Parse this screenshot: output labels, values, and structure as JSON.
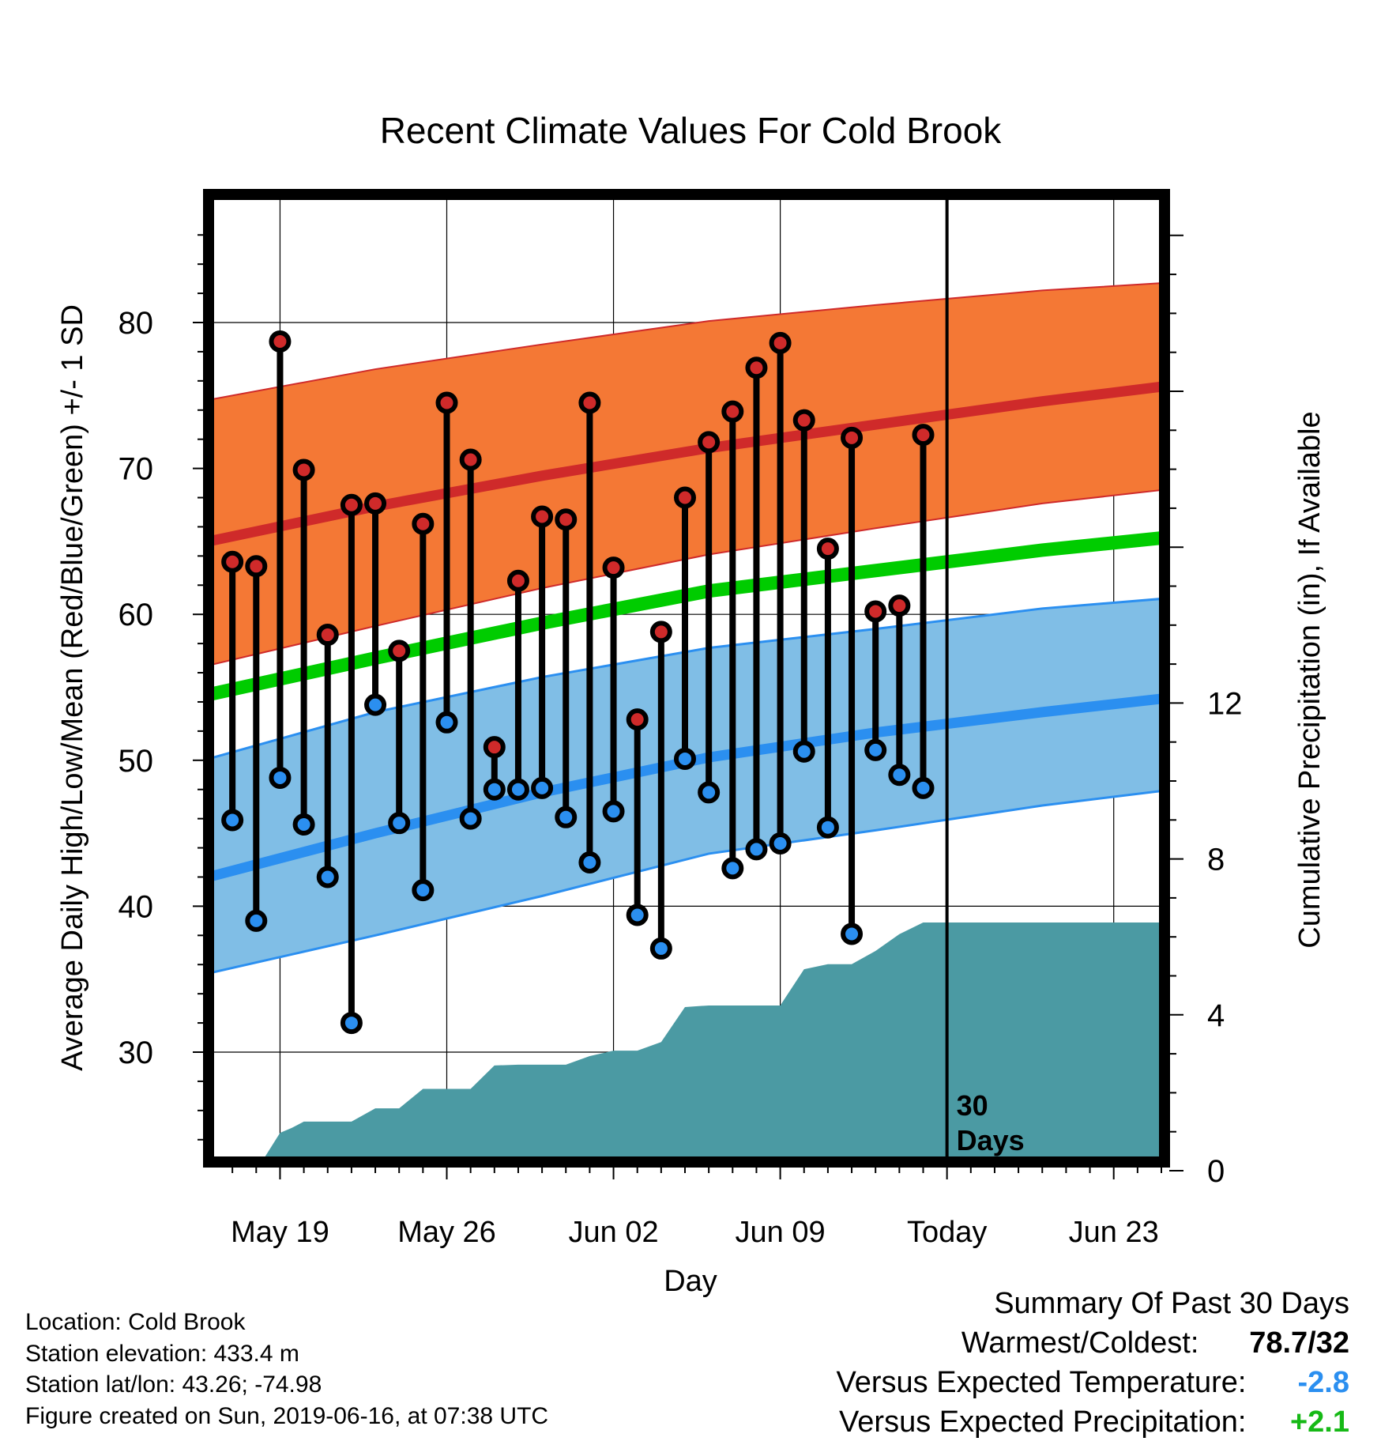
{
  "title": "Recent Climate Values For Cold Brook",
  "chart_data": {
    "type": "line",
    "title": "Recent Climate Values For Cold Brook",
    "xlabel": "Day",
    "ylabel": "Average Daily High/Low/Mean (Red/Blue/Green) +/- 1 SD",
    "y2label": "Cumulative Precipitation (in), If Available",
    "y_ticks": [
      "30",
      "40",
      "50",
      "60",
      "70",
      "80"
    ],
    "y2_ticks": [
      "0",
      "4",
      "8",
      "12"
    ],
    "x_ticks": [
      {
        "day": 3,
        "label": "May 19"
      },
      {
        "day": 10,
        "label": "May 26"
      },
      {
        "day": 17,
        "label": "Jun 02"
      },
      {
        "day": 24,
        "label": "Jun 09"
      },
      {
        "day": 31,
        "label": "Today"
      },
      {
        "day": 38,
        "label": "Jun 23"
      }
    ],
    "x_range_day": [
      0,
      41
    ],
    "ylim": [
      22,
      88
    ],
    "y2lim": [
      0,
      25
    ],
    "today_day": 31,
    "today_label": "30\nDays",
    "normals": {
      "day": [
        0,
        7,
        14,
        21,
        28,
        35,
        41
      ],
      "high_mean": [
        65.0,
        67.4,
        69.5,
        71.4,
        73.0,
        74.6,
        75.8
      ],
      "high_upper": [
        74.7,
        76.8,
        78.5,
        80.1,
        81.2,
        82.2,
        82.8
      ],
      "high_lower": [
        56.5,
        59.2,
        61.8,
        64.1,
        65.9,
        67.6,
        68.7
      ],
      "mean": [
        54.5,
        57.0,
        59.4,
        61.6,
        63.0,
        64.4,
        65.4
      ],
      "low_mean": [
        42.0,
        45.0,
        47.8,
        50.2,
        51.9,
        53.3,
        54.4
      ],
      "low_upper": [
        50.1,
        53.3,
        55.7,
        57.7,
        59.0,
        60.4,
        61.2
      ],
      "low_lower": [
        35.4,
        38.0,
        40.7,
        43.6,
        45.2,
        46.9,
        48.1
      ]
    },
    "daily": {
      "day": [
        1,
        2,
        3,
        4,
        5,
        6,
        7,
        8,
        9,
        10,
        11,
        12,
        13,
        14,
        15,
        16,
        17,
        18,
        19,
        20,
        21,
        22,
        23,
        24,
        25,
        26,
        27,
        28,
        29,
        30
      ],
      "high": [
        63.6,
        63.3,
        78.7,
        69.9,
        58.6,
        67.5,
        67.6,
        57.5,
        66.2,
        74.5,
        70.6,
        50.9,
        62.3,
        66.7,
        66.5,
        74.5,
        63.2,
        52.8,
        58.8,
        68.0,
        71.8,
        73.9,
        76.9,
        78.6,
        73.3,
        64.5,
        72.1,
        60.2,
        60.6,
        72.3
      ],
      "low": [
        45.9,
        39.0,
        48.8,
        45.6,
        42.0,
        32.0,
        53.8,
        45.7,
        41.1,
        52.6,
        46.0,
        48.0,
        48.0,
        48.1,
        46.1,
        43.0,
        46.5,
        39.4,
        37.1,
        50.1,
        47.8,
        42.6,
        43.9,
        44.3,
        50.6,
        45.4,
        38.1,
        50.7,
        49.0,
        48.1
      ]
    },
    "precip": {
      "day": [
        2,
        3,
        3.5,
        4,
        5,
        6,
        7,
        8,
        9,
        10,
        11,
        12,
        13,
        14,
        15,
        16,
        17,
        18,
        19,
        20,
        21,
        22,
        23,
        24,
        25,
        26,
        27,
        28,
        29,
        30,
        31,
        41
      ],
      "cum": [
        0.0,
        0.97,
        1.1,
        1.26,
        1.26,
        1.26,
        1.6,
        1.6,
        2.1,
        2.1,
        2.1,
        2.7,
        2.72,
        2.72,
        2.72,
        2.94,
        3.08,
        3.08,
        3.3,
        4.2,
        4.24,
        4.24,
        4.24,
        4.24,
        5.17,
        5.3,
        5.3,
        5.64,
        6.07,
        6.37,
        6.37,
        6.37
      ]
    },
    "colors": {
      "high_band": "#f47835",
      "high_line": "#cf2a2a",
      "low_band": "#80bee6",
      "low_line": "#2b8ff0",
      "mean_line": "#00cc00",
      "precip": "#4b9aa3",
      "high_dot": "#cf2a2a",
      "low_dot": "#2b8ff0"
    }
  },
  "info": {
    "location": "Location: Cold Brook",
    "elevation": "Station elevation: 433.4 m",
    "latlon": "Station lat/lon: 43.26; -74.98",
    "created": "Figure created on Sun, 2019-06-16, at 07:38 UTC"
  },
  "summary": {
    "title": "Summary Of Past 30 Days",
    "warm_cold_label": "Warmest/Coldest:",
    "warm_cold_value": "78.7/32",
    "temp_label": "Versus Expected Temperature:",
    "temp_value": "-2.8",
    "temp_color": "#2b8ff0",
    "precip_label": "Versus Expected Precipitation:",
    "precip_value": "+2.1",
    "precip_color": "#16b916"
  }
}
